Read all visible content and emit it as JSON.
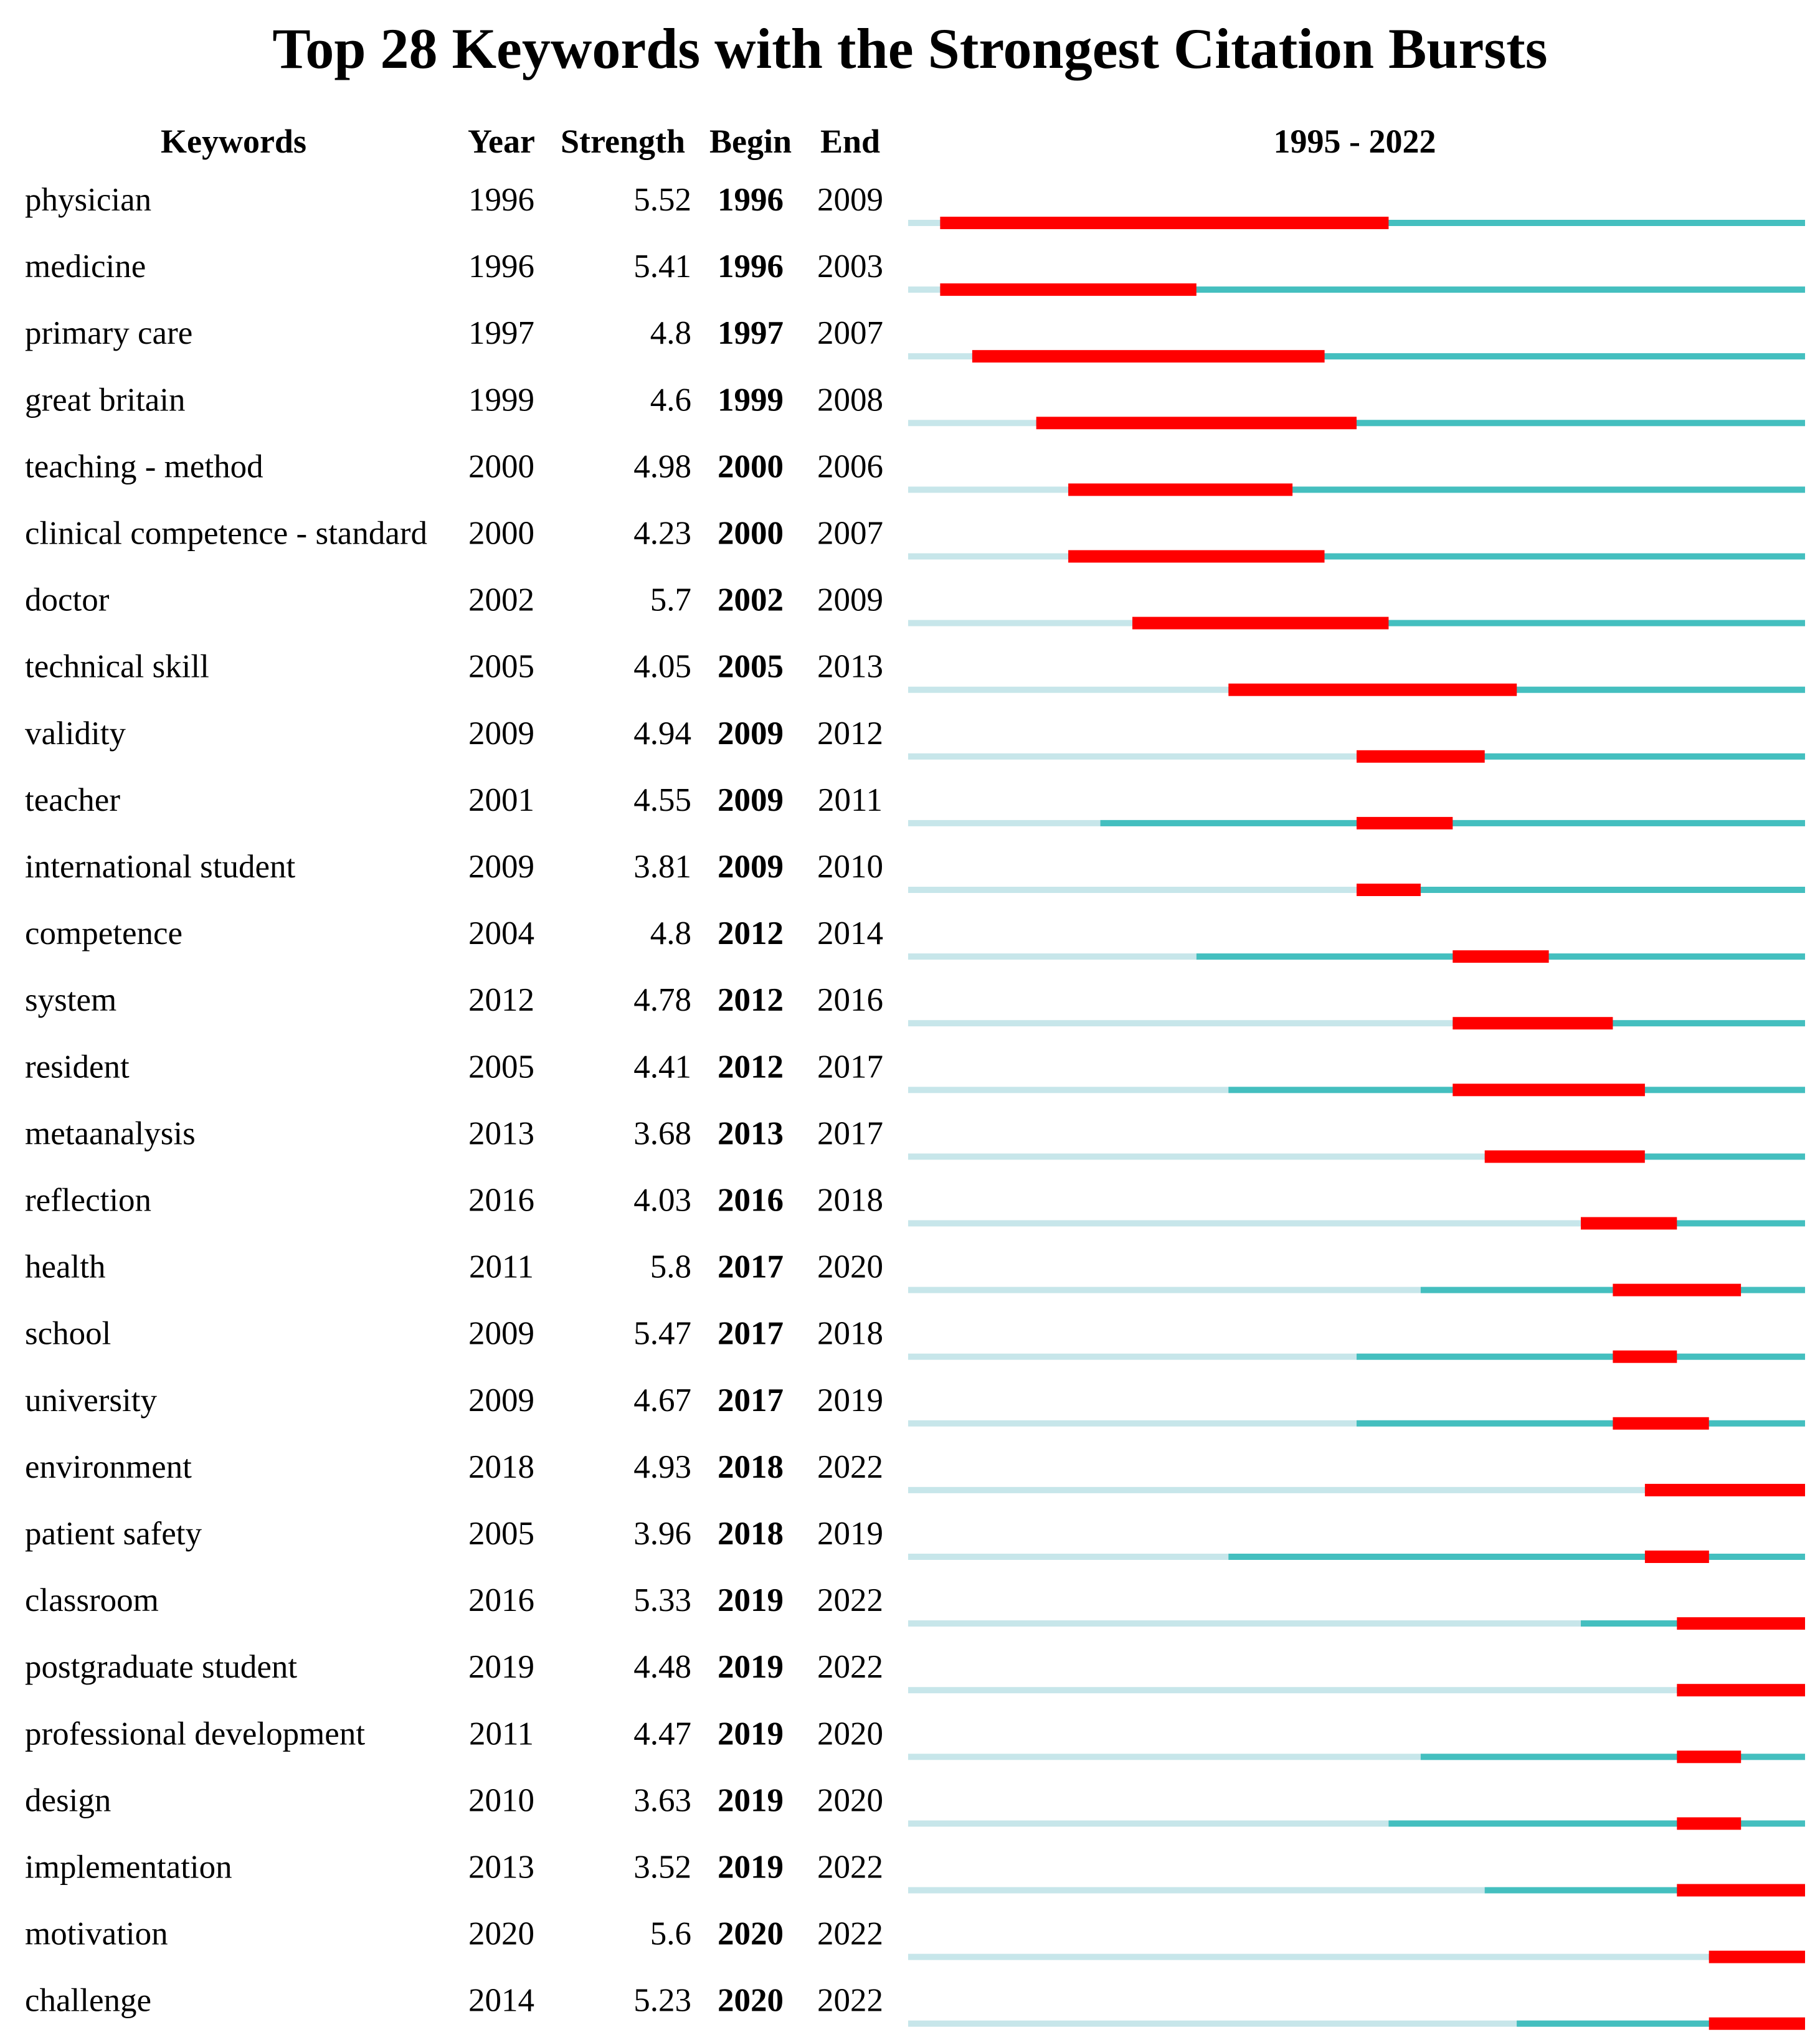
{
  "chart_data": {
    "type": "table",
    "title": "Top 28 Keywords with the Strongest Citation Bursts",
    "columns": [
      "Keywords",
      "Year",
      "Strength",
      "Begin",
      "End"
    ],
    "range_label": "1995 - 2022",
    "year_range": [
      1995,
      2022
    ],
    "colors": {
      "burst": "#ff0000",
      "active": "#44bfbf",
      "inactive": "#c7e6ea"
    },
    "rows": [
      {
        "keyword": "physician",
        "year": 1996,
        "strength": "5.52",
        "begin": 1996,
        "end": 2009
      },
      {
        "keyword": "medicine",
        "year": 1996,
        "strength": "5.41",
        "begin": 1996,
        "end": 2003
      },
      {
        "keyword": "primary care",
        "year": 1997,
        "strength": "4.8",
        "begin": 1997,
        "end": 2007
      },
      {
        "keyword": "great britain",
        "year": 1999,
        "strength": "4.6",
        "begin": 1999,
        "end": 2008
      },
      {
        "keyword": "teaching - method",
        "year": 2000,
        "strength": "4.98",
        "begin": 2000,
        "end": 2006
      },
      {
        "keyword": "clinical competence - standard",
        "year": 2000,
        "strength": "4.23",
        "begin": 2000,
        "end": 2007
      },
      {
        "keyword": "doctor",
        "year": 2002,
        "strength": "5.7",
        "begin": 2002,
        "end": 2009
      },
      {
        "keyword": "technical skill",
        "year": 2005,
        "strength": "4.05",
        "begin": 2005,
        "end": 2013
      },
      {
        "keyword": "validity",
        "year": 2009,
        "strength": "4.94",
        "begin": 2009,
        "end": 2012
      },
      {
        "keyword": "teacher",
        "year": 2001,
        "strength": "4.55",
        "begin": 2009,
        "end": 2011
      },
      {
        "keyword": "international student",
        "year": 2009,
        "strength": "3.81",
        "begin": 2009,
        "end": 2010
      },
      {
        "keyword": "competence",
        "year": 2004,
        "strength": "4.8",
        "begin": 2012,
        "end": 2014
      },
      {
        "keyword": "system",
        "year": 2012,
        "strength": "4.78",
        "begin": 2012,
        "end": 2016
      },
      {
        "keyword": "resident",
        "year": 2005,
        "strength": "4.41",
        "begin": 2012,
        "end": 2017
      },
      {
        "keyword": "metaanalysis",
        "year": 2013,
        "strength": "3.68",
        "begin": 2013,
        "end": 2017
      },
      {
        "keyword": "reflection",
        "year": 2016,
        "strength": "4.03",
        "begin": 2016,
        "end": 2018
      },
      {
        "keyword": "health",
        "year": 2011,
        "strength": "5.8",
        "begin": 2017,
        "end": 2020
      },
      {
        "keyword": "school",
        "year": 2009,
        "strength": "5.47",
        "begin": 2017,
        "end": 2018
      },
      {
        "keyword": "university",
        "year": 2009,
        "strength": "4.67",
        "begin": 2017,
        "end": 2019
      },
      {
        "keyword": "environment",
        "year": 2018,
        "strength": "4.93",
        "begin": 2018,
        "end": 2022
      },
      {
        "keyword": "patient safety",
        "year": 2005,
        "strength": "3.96",
        "begin": 2018,
        "end": 2019
      },
      {
        "keyword": "classroom",
        "year": 2016,
        "strength": "5.33",
        "begin": 2019,
        "end": 2022
      },
      {
        "keyword": "postgraduate student",
        "year": 2019,
        "strength": "4.48",
        "begin": 2019,
        "end": 2022
      },
      {
        "keyword": "professional development",
        "year": 2011,
        "strength": "4.47",
        "begin": 2019,
        "end": 2020
      },
      {
        "keyword": "design",
        "year": 2010,
        "strength": "3.63",
        "begin": 2019,
        "end": 2020
      },
      {
        "keyword": "implementation",
        "year": 2013,
        "strength": "3.52",
        "begin": 2019,
        "end": 2022
      },
      {
        "keyword": "motivation",
        "year": 2020,
        "strength": "5.6",
        "begin": 2020,
        "end": 2022
      },
      {
        "keyword": "challenge",
        "year": 2014,
        "strength": "5.23",
        "begin": 2020,
        "end": 2022
      }
    ]
  }
}
